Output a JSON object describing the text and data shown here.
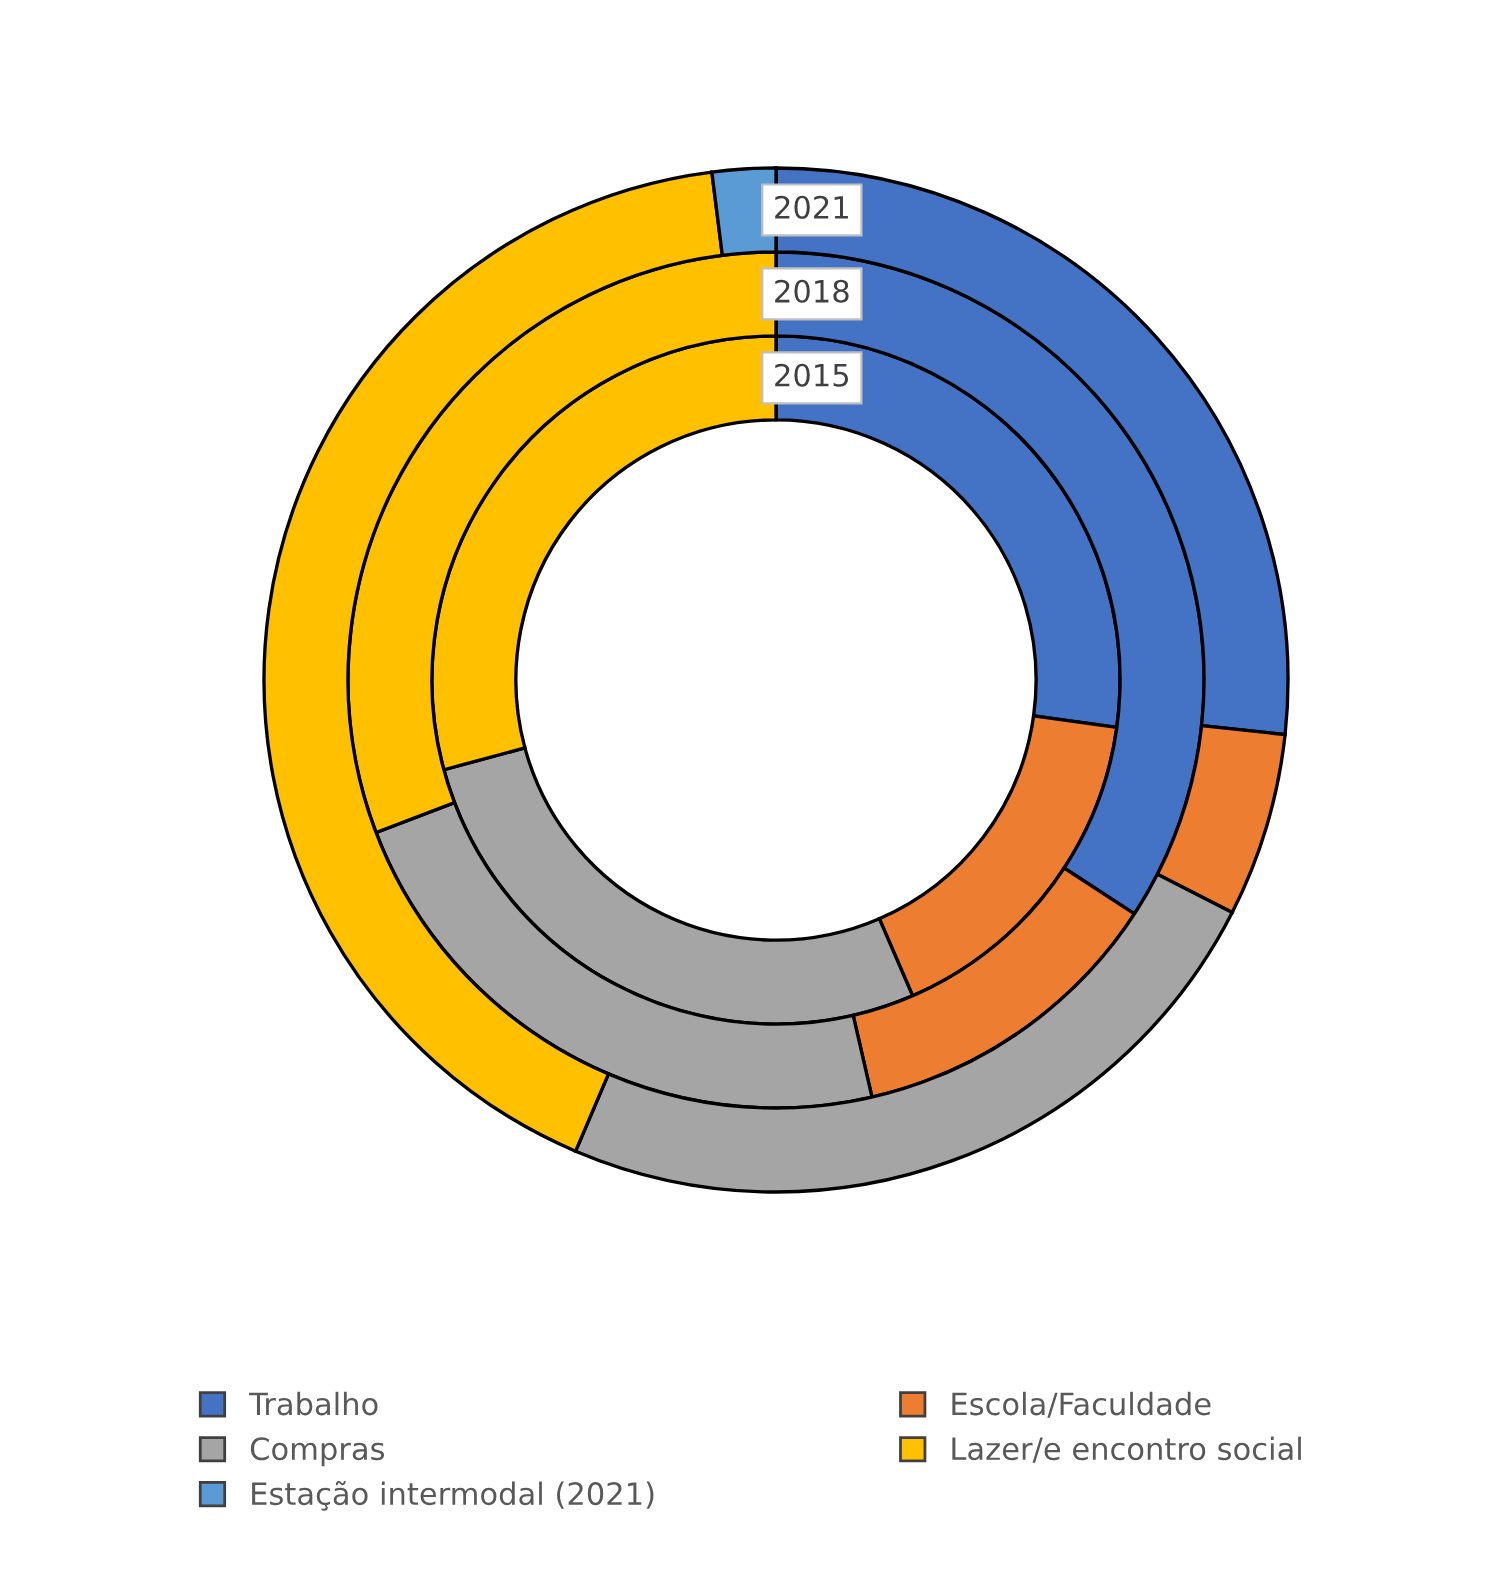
{
  "chart_data": {
    "type": "donut",
    "categories": [
      "Trabalho",
      "Escola/Faculdade",
      "Compras",
      "Lazer/e encontro social",
      "Estação intermodal (2021)"
    ],
    "colors": [
      "#4472c4",
      "#ed7d31",
      "#a5a5a5",
      "#ffc000",
      "#5b9bd5"
    ],
    "series": [
      {
        "name": "2015",
        "values": [
          27.2,
          16.3,
          27.3,
          29.2,
          null
        ]
      },
      {
        "name": "2018",
        "values": [
          34.2,
          12.2,
          22.8,
          30.8,
          null
        ]
      },
      {
        "name": "2021",
        "values": [
          26.7,
          5.8,
          23.9,
          41.6,
          2.0
        ]
      }
    ],
    "legend": "bottom"
  }
}
